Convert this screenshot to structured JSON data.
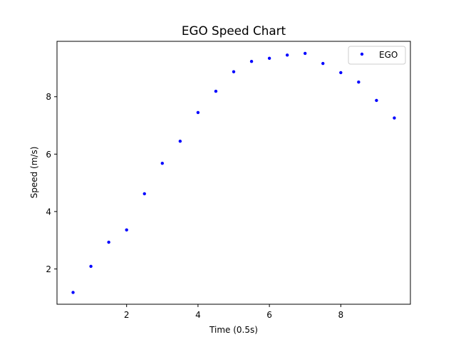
{
  "chart_data": {
    "type": "scatter",
    "title": "EGO Speed Chart",
    "xlabel": "Time (0.5s)",
    "ylabel": "Speed (m/s)",
    "xlim": [
      0.05,
      9.95
    ],
    "ylim": [
      0.77,
      9.93
    ],
    "xticks": [
      2,
      4,
      6,
      8
    ],
    "yticks": [
      2,
      4,
      6,
      8
    ],
    "grid": false,
    "legend_position": "upper right",
    "series": [
      {
        "name": "EGO",
        "color": "#0000ff",
        "marker": "dot",
        "x": [
          0.5,
          1.0,
          1.5,
          2.0,
          2.5,
          3.0,
          3.5,
          4.0,
          4.5,
          5.0,
          5.5,
          6.0,
          6.5,
          7.0,
          7.5,
          8.0,
          8.5,
          9.0,
          9.5
        ],
        "y": [
          1.18,
          2.09,
          2.93,
          3.36,
          4.62,
          5.68,
          6.45,
          7.45,
          8.19,
          8.87,
          9.23,
          9.34,
          9.45,
          9.51,
          9.16,
          8.84,
          8.51,
          7.87,
          7.26
        ]
      }
    ]
  }
}
